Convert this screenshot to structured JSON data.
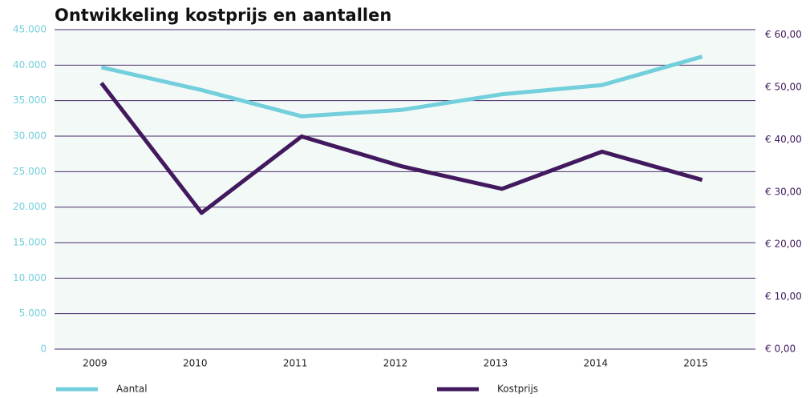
{
  "chart_data": {
    "type": "line",
    "title": "Ontwikkeling kostprijs en aantallen",
    "categories": [
      "2009",
      "2010",
      "2011",
      "2012",
      "2013",
      "2014",
      "2015"
    ],
    "series": [
      {
        "name": "Aantal",
        "color": "#74cfdc",
        "values": [
          39700,
          36500,
          32800,
          33700,
          35900,
          37200,
          41200
        ]
      },
      {
        "name": "Kostprijs",
        "color": "#42195e",
        "axis": "y2",
        "values": [
          50.8,
          26.0,
          40.6,
          34.9,
          30.6,
          37.7,
          32.3
        ]
      }
    ],
    "ylim": [
      0,
      45000
    ],
    "yticks": [
      0,
      {
        "value": 5000,
        "label": "5.000"
      },
      {
        "value": 10000,
        "label": "10.000"
      },
      {
        "value": 15000,
        "label": "15.000"
      },
      {
        "value": 20000,
        "label": "20.000"
      },
      {
        "value": 25000,
        "label": "25.000"
      },
      {
        "value": 30000,
        "label": "30.000"
      },
      {
        "value": 35000,
        "label": "35.000"
      },
      {
        "value": 40000,
        "label": "40.000"
      },
      {
        "value": 45000,
        "label": "45.000"
      }
    ],
    "y2lim": [
      0,
      61
    ],
    "y2ticks": [
      {
        "value": 0,
        "label": "€ 0,00"
      },
      {
        "value": 10,
        "label": "€ 10,00"
      },
      {
        "value": 20,
        "label": "€ 20,00"
      },
      {
        "value": 30,
        "label": "€ 30,00"
      },
      {
        "value": 40,
        "label": "€ 40,00"
      },
      {
        "value": 50,
        "label": "€ 50,00"
      },
      {
        "value": 60,
        "label": "€ 60,00"
      }
    ],
    "grid": true,
    "legend": "bottom"
  }
}
